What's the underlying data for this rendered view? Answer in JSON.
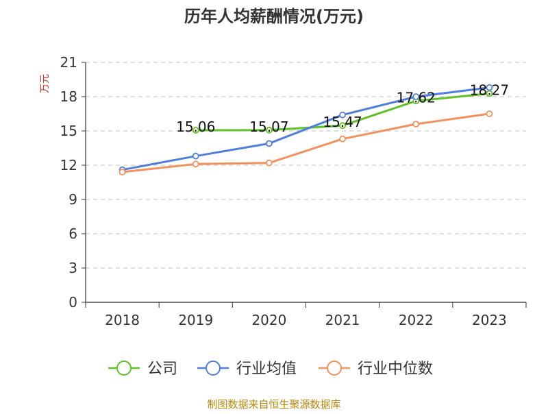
{
  "chart_data": {
    "type": "line",
    "title": "历年人均薪酬情况(万元)",
    "ylabel": "万元",
    "xlabel": "",
    "categories": [
      "2018",
      "2019",
      "2020",
      "2021",
      "2022",
      "2023"
    ],
    "ylim": [
      0,
      21
    ],
    "yticks": [
      0,
      3,
      6,
      9,
      12,
      15,
      18,
      21
    ],
    "grid": true,
    "legend_position": "bottom",
    "series": [
      {
        "name": "公司",
        "color": "#5ec124",
        "values": [
          null,
          15.06,
          15.07,
          15.47,
          17.62,
          18.27
        ],
        "show_labels": true
      },
      {
        "name": "行业均值",
        "color": "#4f7fdc",
        "values": [
          11.6,
          12.8,
          13.9,
          16.4,
          18.0,
          18.8
        ],
        "show_labels": false
      },
      {
        "name": "行业中位数",
        "color": "#f3905b",
        "values": [
          11.4,
          12.1,
          12.2,
          14.3,
          15.6,
          16.5
        ],
        "show_labels": false
      }
    ],
    "data_labels": [
      "15.06",
      "15.07",
      "15.47",
      "17.62",
      "18.27"
    ],
    "source": "制图数据来自恒生聚源数据库",
    "source_color": "#b8860b",
    "ylabel_color": "#e03030"
  }
}
